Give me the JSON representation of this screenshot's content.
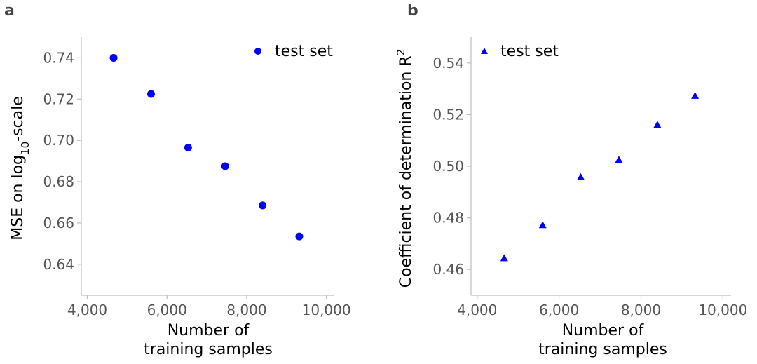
{
  "chart_data": [
    {
      "panel_label": "a",
      "type": "scatter",
      "series": [
        {
          "name": "test set",
          "marker": "circle",
          "color": "#0000ff",
          "x": [
            4660,
            5600,
            6530,
            7460,
            8400,
            9320
          ],
          "y": [
            0.74,
            0.7225,
            0.6965,
            0.6875,
            0.6685,
            0.6535
          ]
        }
      ],
      "xlabel_line1": "Number of",
      "xlabel_line2": "training samples",
      "ylabel_main": "MSE on log",
      "ylabel_sub": "10",
      "ylabel_tail": "-scale",
      "xlim": [
        3850,
        10200
      ],
      "ylim": [
        0.625,
        0.75
      ],
      "xticks": [
        4000,
        6000,
        8000,
        10000
      ],
      "xtick_labels": [
        "4,000",
        "6,000",
        "8,000",
        "10,000"
      ],
      "yticks": [
        0.64,
        0.66,
        0.68,
        0.7,
        0.72,
        0.74
      ],
      "ytick_labels": [
        "0.64",
        "0.66",
        "0.68",
        "0.70",
        "0.72",
        "0.74"
      ],
      "legend_label": "test set",
      "legend_position": "top-right",
      "grid": false
    },
    {
      "panel_label": "b",
      "type": "scatter",
      "series": [
        {
          "name": "test set",
          "marker": "triangle-up",
          "color": "#0000ff",
          "x": [
            4660,
            5600,
            6530,
            7460,
            8400,
            9320
          ],
          "y": [
            0.4643,
            0.4771,
            0.4957,
            0.5024,
            0.516,
            0.5272
          ]
        }
      ],
      "xlabel_line1": "Number of",
      "xlabel_line2": "training samples",
      "ylabel_main": "Coefficient of determination R",
      "ylabel_sup": "2",
      "xlim": [
        3850,
        10200
      ],
      "ylim": [
        0.45,
        0.55
      ],
      "xticks": [
        4000,
        6000,
        8000,
        10000
      ],
      "xtick_labels": [
        "4,000",
        "6,000",
        "8,000",
        "10,000"
      ],
      "yticks": [
        0.46,
        0.48,
        0.5,
        0.52,
        0.54
      ],
      "ytick_labels": [
        "0.46",
        "0.48",
        "0.50",
        "0.52",
        "0.54"
      ],
      "legend_label": "test set",
      "legend_position": "top-left",
      "grid": false
    }
  ]
}
